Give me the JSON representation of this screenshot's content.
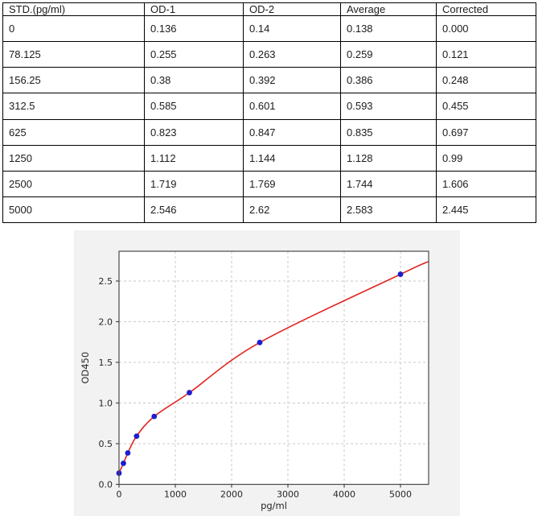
{
  "table": {
    "columns": [
      "STD.(pg/ml)",
      "OD-1",
      "OD-2",
      "Average",
      "Corrected"
    ],
    "rows": [
      [
        "0",
        "0.136",
        "0.14",
        "0.138",
        "0.000"
      ],
      [
        "78.125",
        "0.255",
        "0.263",
        "0.259",
        "0.121"
      ],
      [
        "156.25",
        "0.38",
        "0.392",
        "0.386",
        "0.248"
      ],
      [
        "312.5",
        "0.585",
        "0.601",
        "0.593",
        "0.455"
      ],
      [
        "625",
        "0.823",
        "0.847",
        "0.835",
        "0.697"
      ],
      [
        "1250",
        "1.112",
        "1.144",
        "1.128",
        "0.99"
      ],
      [
        "2500",
        "1.719",
        "1.769",
        "1.744",
        "1.606"
      ],
      [
        "5000",
        "2.546",
        "2.62",
        "2.583",
        "2.445"
      ]
    ]
  },
  "chart_data": {
    "type": "scatter",
    "title": "",
    "xlabel": "pg/ml",
    "ylabel": "OD450",
    "x": [
      0,
      78.125,
      156.25,
      312.5,
      625,
      1250,
      2500,
      5000
    ],
    "y": [
      0.138,
      0.259,
      0.386,
      0.593,
      0.835,
      1.128,
      1.744,
      2.583
    ],
    "series": [
      {
        "name": "standard-points",
        "type": "scatter"
      },
      {
        "name": "fit-curve",
        "type": "line"
      }
    ],
    "curve_end": [
      5500,
      2.74
    ],
    "xticks": [
      0,
      1000,
      2000,
      3000,
      4000,
      5000
    ],
    "yticks": [
      0.0,
      0.5,
      1.0,
      1.5,
      2.0,
      2.5
    ],
    "xlim": [
      0,
      5500
    ],
    "ylim": [
      0,
      2.866
    ],
    "grid": true,
    "legend_position": "none",
    "colors": {
      "point": "#1d1dce",
      "curve": "#e02521",
      "figure_bg": "#f2f2f2",
      "plot_bg": "#ffffff",
      "grid": "#c9c9c9",
      "spine": "#4a4a4a",
      "text": "#262626"
    }
  }
}
